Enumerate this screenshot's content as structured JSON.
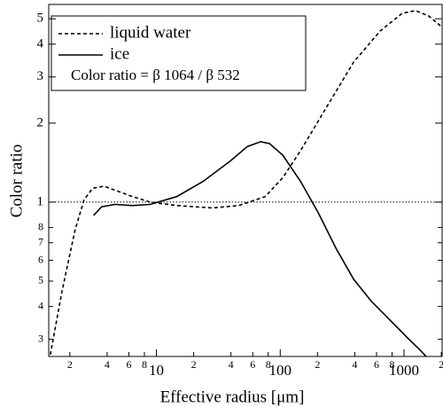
{
  "chart_data": {
    "type": "line",
    "x_label": "Effective radius [μm]",
    "y_label": "Color ratio",
    "annotation": "Color ratio = β 1064 / β 532",
    "log_x": true,
    "log_y": true,
    "xlim": [
      1.35,
      2030
    ],
    "ylim": [
      0.258,
      5.67
    ],
    "xticks": [
      {
        "value": 2,
        "label": "2"
      },
      {
        "value": 4,
        "label": "4"
      },
      {
        "value": 6,
        "label": "6"
      },
      {
        "value": 8,
        "label": "8"
      },
      10,
      {
        "value": 20,
        "label": "2"
      },
      {
        "value": 40,
        "label": "4"
      },
      {
        "value": 60,
        "label": "6"
      },
      {
        "value": 80,
        "label": "8"
      },
      100,
      {
        "value": 200,
        "label": "2"
      },
      {
        "value": 400,
        "label": "4"
      },
      {
        "value": 600,
        "label": "6"
      },
      {
        "value": 800,
        "label": "8"
      },
      1000,
      {
        "value": 2000,
        "label": "2"
      }
    ],
    "yticks": [
      {
        "value": 0.3,
        "label": "3"
      },
      {
        "value": 0.4,
        "label": "4"
      },
      {
        "value": 0.5,
        "label": "5"
      },
      {
        "value": 0.6,
        "label": "6"
      },
      {
        "value": 0.7,
        "label": "7"
      },
      {
        "value": 0.8,
        "label": "8"
      },
      1,
      2,
      3,
      4,
      5
    ],
    "reference_line": 1,
    "series": [
      {
        "name": "liquid water",
        "color": "#000000",
        "dash": true,
        "x": [
          1.39,
          1.72,
          2.2,
          2.6,
          3.06,
          3.79,
          4.62,
          6.41,
          8.91,
          14.6,
          28.2,
          46.2,
          75.6,
          105,
          146,
          239,
          392,
          641,
          968,
          1238,
          1585,
          2000
        ],
        "values": [
          0.262,
          0.452,
          0.78,
          1.02,
          1.13,
          1.15,
          1.11,
          1.05,
          1.0,
          0.97,
          0.95,
          0.97,
          1.05,
          1.24,
          1.57,
          2.32,
          3.42,
          4.49,
          5.25,
          5.37,
          5.12,
          4.67
        ]
      },
      {
        "name": "ice",
        "color": "#000000",
        "dash": false,
        "x": [
          3.11,
          3.61,
          4.62,
          6.41,
          8.91,
          14.6,
          23.9,
          39.2,
          54.4,
          69.6,
          82.1,
          105,
          146,
          203,
          282,
          392,
          544,
          756,
          1050,
          1345,
          1509
        ],
        "values": [
          0.89,
          0.96,
          0.98,
          0.97,
          0.98,
          1.05,
          1.2,
          1.43,
          1.63,
          1.7,
          1.67,
          1.51,
          1.2,
          0.91,
          0.667,
          0.508,
          0.419,
          0.358,
          0.306,
          0.273,
          0.258
        ]
      }
    ]
  }
}
